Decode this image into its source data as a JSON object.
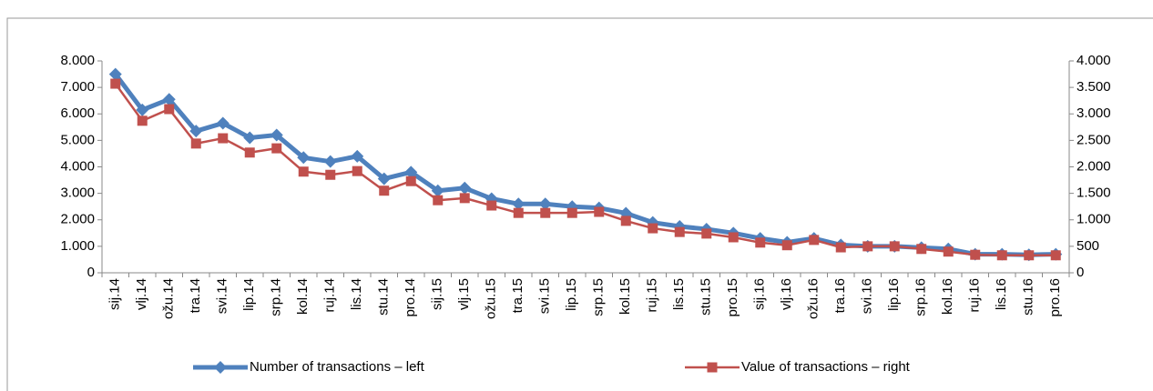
{
  "chart_data": {
    "type": "line",
    "categories": [
      "sij.14",
      "vlj.14",
      "ožu.14",
      "tra.14",
      "svi.14",
      "lip.14",
      "srp.14",
      "kol.14",
      "ruj.14",
      "lis.14",
      "stu.14",
      "pro.14",
      "sij.15",
      "vlj.15",
      "ožu.15",
      "tra.15",
      "svi.15",
      "lip.15",
      "srp.15",
      "kol.15",
      "ruj.15",
      "lis.15",
      "stu.15",
      "pro.15",
      "sij.16",
      "vlj.16",
      "ožu.16",
      "tra.16",
      "svi.16",
      "lip.16",
      "srp.16",
      "kol.16",
      "ruj.16",
      "lis.16",
      "stu.16",
      "pro.16"
    ],
    "series": [
      {
        "name": "Number of transactions – left",
        "color": "#4f81bd",
        "axis": "y",
        "values": [
          7500,
          6150,
          6550,
          5350,
          5650,
          5100,
          5200,
          4350,
          4200,
          4400,
          3550,
          3800,
          3100,
          3200,
          2800,
          2600,
          2600,
          2500,
          2450,
          2250,
          1900,
          1750,
          1650,
          1500,
          1300,
          1150,
          1300,
          1050,
          1000,
          1000,
          950,
          900,
          700,
          700,
          680,
          700
        ]
      },
      {
        "name": "Value of transactions – right",
        "color": "#c0504d",
        "axis": "y2",
        "values": [
          3570,
          2870,
          3090,
          2440,
          2540,
          2270,
          2350,
          1910,
          1850,
          1920,
          1550,
          1730,
          1370,
          1410,
          1270,
          1130,
          1130,
          1130,
          1150,
          980,
          840,
          770,
          740,
          670,
          570,
          520,
          620,
          480,
          500,
          500,
          450,
          400,
          340,
          330,
          330,
          330
        ]
      }
    ],
    "ylim": [
      0,
      8000
    ],
    "yticks": [
      0,
      {
        "value": 1000,
        "label": "1.000"
      },
      {
        "value": 2000,
        "label": "2.000"
      },
      {
        "value": 3000,
        "label": "3.000"
      },
      {
        "value": 4000,
        "label": "4.000"
      },
      {
        "value": 5000,
        "label": "5.000"
      },
      {
        "value": 6000,
        "label": "6.000"
      },
      {
        "value": 7000,
        "label": "7.000"
      },
      {
        "value": 8000,
        "label": "8.000"
      }
    ],
    "y2lim": [
      0,
      4000
    ],
    "y2ticks": [
      0,
      500,
      {
        "value": 1000,
        "label": "1.000"
      },
      {
        "value": 1500,
        "label": "1.500"
      },
      {
        "value": 2000,
        "label": "2.000"
      },
      {
        "value": 2500,
        "label": "2.500"
      },
      {
        "value": 3000,
        "label": "3.000"
      },
      {
        "value": 3500,
        "label": "3.500"
      },
      {
        "value": 4000,
        "label": "4.000"
      }
    ]
  }
}
